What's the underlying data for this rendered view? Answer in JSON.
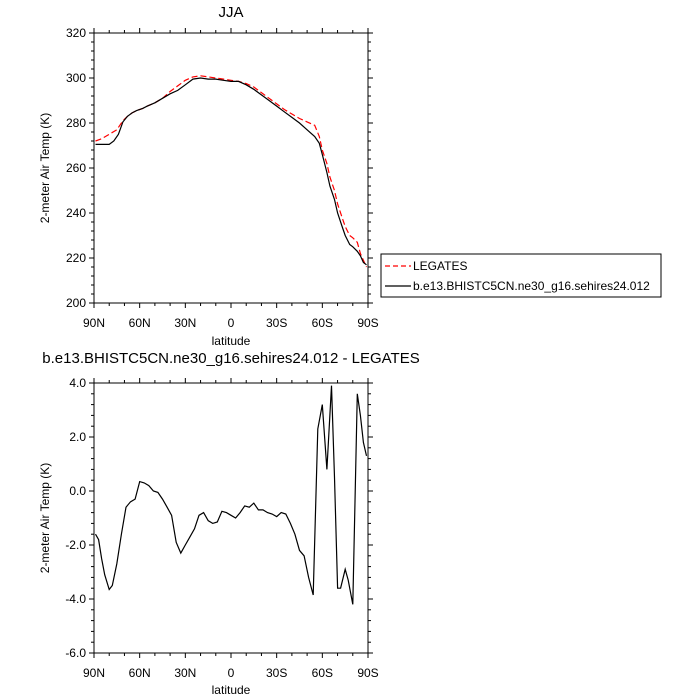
{
  "chart_data": [
    {
      "type": "line",
      "title": "JJA",
      "xlabel": "latitude",
      "ylabel": "2-meter Air Temp (K)",
      "ylim": [
        200,
        320
      ],
      "yticks": [
        200,
        220,
        240,
        260,
        280,
        300,
        320
      ],
      "xlim": [
        90,
        -90
      ],
      "xticks": [
        {
          "value": 90,
          "label": "90N"
        },
        {
          "value": 60,
          "label": "60N"
        },
        {
          "value": 30,
          "label": "30N"
        },
        {
          "value": 0,
          "label": "0"
        },
        {
          "value": -30,
          "label": "30S"
        },
        {
          "value": -60,
          "label": "60S"
        },
        {
          "value": -90,
          "label": "90S"
        }
      ],
      "legend_position": "right",
      "series": [
        {
          "name": "LEGATES",
          "color": "#ff0000",
          "dash": "dashed",
          "x": [
            89,
            85,
            80,
            75,
            71,
            68,
            65,
            62,
            58,
            55,
            50,
            45,
            40,
            35,
            30,
            25,
            20,
            15,
            10,
            5,
            0,
            -5,
            -10,
            -15,
            -20,
            -25,
            -30,
            -35,
            -40,
            -45,
            -50,
            -55,
            -58,
            -60,
            -63,
            -65,
            -68,
            -70,
            -73,
            -75,
            -78,
            -80,
            -83,
            -85,
            -87,
            -89
          ],
          "y": [
            272,
            273,
            275,
            277,
            281,
            283,
            284.5,
            285.5,
            286.5,
            287.5,
            289,
            291,
            294,
            296.5,
            299,
            300.5,
            301,
            300.5,
            300,
            299.5,
            299,
            298.5,
            297.5,
            296,
            293.5,
            291,
            288.5,
            286,
            284,
            282,
            280.5,
            279,
            274,
            268,
            262,
            256,
            250,
            244,
            238,
            234,
            230,
            229,
            227,
            222,
            219,
            216
          ]
        },
        {
          "name": "b.e13.BHISTC5CN.ne30_g16.sehires24.012",
          "color": "#000000",
          "dash": "solid",
          "x": [
            89,
            85,
            80,
            77,
            74,
            71,
            68,
            65,
            62,
            58,
            55,
            50,
            45,
            40,
            35,
            30,
            25,
            20,
            15,
            10,
            5,
            0,
            -5,
            -10,
            -15,
            -20,
            -25,
            -30,
            -35,
            -40,
            -45,
            -50,
            -55,
            -58,
            -60,
            -63,
            -65,
            -68,
            -70,
            -73,
            -75,
            -78,
            -80,
            -83,
            -85,
            -87,
            -89
          ],
          "y": [
            270.5,
            270.5,
            270.5,
            272,
            275,
            280.5,
            283,
            284.5,
            285.5,
            286.5,
            287.5,
            289,
            291,
            293,
            294.5,
            297,
            299.5,
            300,
            299.5,
            299.5,
            299,
            298.5,
            298.5,
            297,
            295,
            292.5,
            290,
            287.5,
            285,
            282.5,
            280,
            277,
            274,
            271,
            266,
            258,
            252,
            246,
            240,
            234,
            230,
            226,
            225,
            223,
            221,
            218,
            217
          ]
        }
      ]
    },
    {
      "type": "line",
      "title": "b.e13.BHISTC5CN.ne30_g16.sehires24.012 - LEGATES",
      "xlabel": "latitude",
      "ylabel": "2-meter Air Temp (K)",
      "ylim": [
        -6,
        4
      ],
      "yticks": [
        {
          "value": -6,
          "label": "-6.0"
        },
        {
          "value": -4,
          "label": "-4.0"
        },
        {
          "value": -2,
          "label": "-2.0"
        },
        {
          "value": 0,
          "label": "0.0"
        },
        {
          "value": 2,
          "label": "2.0"
        },
        {
          "value": 4,
          "label": "4.0"
        }
      ],
      "xlim": [
        90,
        -90
      ],
      "xticks": [
        {
          "value": 90,
          "label": "90N"
        },
        {
          "value": 60,
          "label": "60N"
        },
        {
          "value": 30,
          "label": "30N"
        },
        {
          "value": 0,
          "label": "0"
        },
        {
          "value": -30,
          "label": "30S"
        },
        {
          "value": -60,
          "label": "60S"
        },
        {
          "value": -90,
          "label": "90S"
        }
      ],
      "series": [
        {
          "color": "#000000",
          "dash": "solid",
          "x": [
            89,
            87,
            85,
            83,
            80,
            78,
            75,
            72,
            69,
            66,
            63,
            60,
            57,
            54,
            51,
            48,
            45,
            42,
            39,
            36,
            33,
            30,
            27,
            24,
            21,
            18,
            15,
            12,
            9,
            6,
            3,
            0,
            -3,
            -6,
            -9,
            -12,
            -15,
            -18,
            -21,
            -24,
            -27,
            -30,
            -33,
            -36,
            -39,
            -42,
            -45,
            -48,
            -51,
            -54,
            -57,
            -60,
            -63,
            -66,
            -68,
            -70,
            -72,
            -75,
            -77,
            -80,
            -83,
            -85,
            -87,
            -89
          ],
          "y": [
            -1.6,
            -1.8,
            -2.5,
            -3.1,
            -3.65,
            -3.5,
            -2.7,
            -1.6,
            -0.6,
            -0.4,
            -0.3,
            0.35,
            0.3,
            0.2,
            0.0,
            -0.05,
            -0.3,
            -0.6,
            -0.9,
            -1.9,
            -2.3,
            -2.0,
            -1.7,
            -1.4,
            -0.9,
            -0.8,
            -1.1,
            -1.2,
            -1.15,
            -0.75,
            -0.8,
            -0.9,
            -1.0,
            -0.8,
            -0.55,
            -0.6,
            -0.45,
            -0.7,
            -0.7,
            -0.8,
            -0.85,
            -0.95,
            -0.8,
            -0.85,
            -1.2,
            -1.6,
            -2.2,
            -2.4,
            -3.2,
            -3.85,
            2.3,
            3.2,
            0.8,
            3.9,
            0.5,
            -3.6,
            -3.6,
            -2.9,
            -3.3,
            -4.2,
            3.6,
            2.8,
            1.8,
            1.3
          ]
        }
      ]
    }
  ]
}
